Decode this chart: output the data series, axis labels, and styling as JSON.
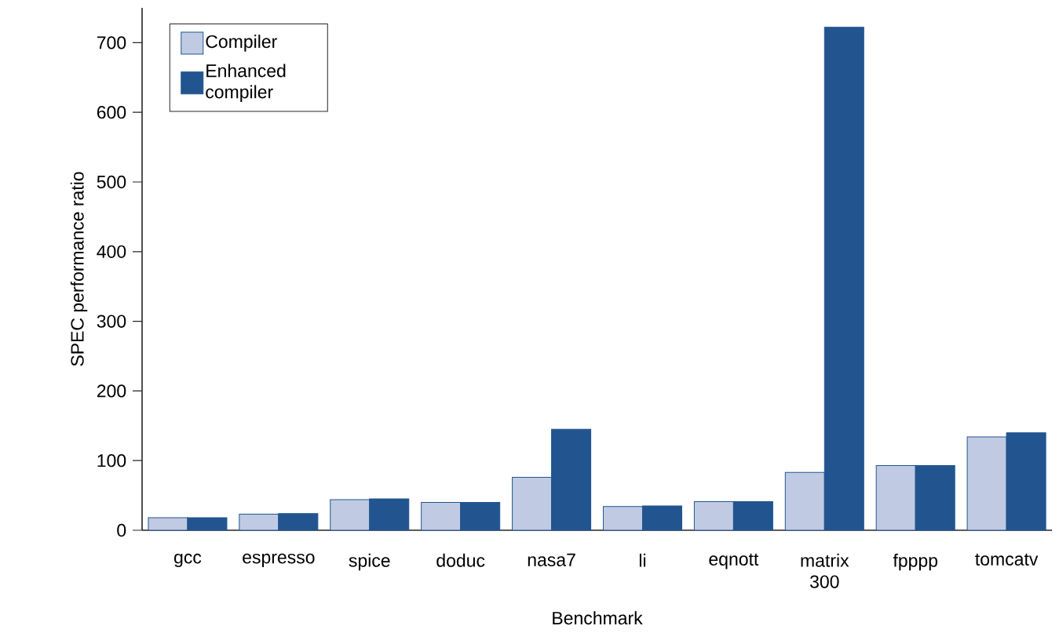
{
  "chart_data": {
    "type": "bar",
    "xlabel": "Benchmark",
    "ylabel": "SPEC performance ratio",
    "categories": [
      "gcc",
      "espresso",
      "spice",
      "doduc",
      "nasa7",
      "li",
      "eqnott",
      "matrix 300",
      "fpppp",
      "tomcatv"
    ],
    "series": [
      {
        "name": "Compiler",
        "color": "#c0cbe3",
        "values": [
          18,
          23,
          44,
          40,
          76,
          34,
          41,
          83,
          93,
          134
        ]
      },
      {
        "name": "Enhanced compiler",
        "color": "#22558f",
        "values": [
          18,
          24,
          45,
          40,
          145,
          35,
          41,
          722,
          93,
          140
        ]
      }
    ],
    "ylim": [
      0,
      750
    ],
    "yticks": [
      0,
      100,
      200,
      300,
      400,
      500,
      600,
      700
    ],
    "grid": false,
    "legend": "top left"
  }
}
